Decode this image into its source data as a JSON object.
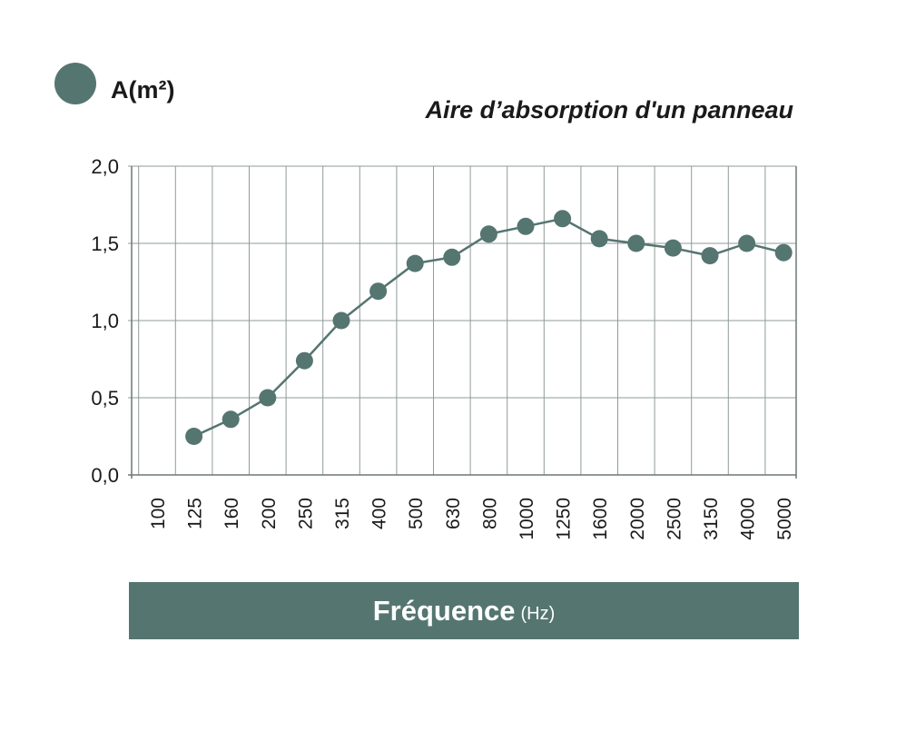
{
  "legend": {
    "label": "A(m²)",
    "color": "#557570"
  },
  "chart_data": {
    "type": "line",
    "title": "Aire d’absorption d'un panneau",
    "ylabel": "A(m²)",
    "xlabel_main": "Fréquence",
    "xlabel_unit": "(Hz)",
    "categories": [
      "100",
      "125",
      "160",
      "200",
      "250",
      "315",
      "400",
      "500",
      "630",
      "800",
      "1000",
      "1250",
      "1600",
      "2000",
      "2500",
      "3150",
      "4000",
      "5000"
    ],
    "series": [
      {
        "name": "A(m²)",
        "color": "#557570",
        "values": [
          null,
          0.25,
          0.36,
          0.5,
          0.74,
          1.0,
          1.19,
          1.37,
          1.41,
          1.56,
          1.61,
          1.66,
          1.53,
          1.5,
          1.47,
          1.42,
          1.5,
          1.44
        ]
      }
    ],
    "ylim": [
      0,
      2.0
    ],
    "yticks": [
      "0,0",
      "0,5",
      "1,0",
      "1,5",
      "2,0"
    ],
    "ytick_values": [
      0,
      0.5,
      1.0,
      1.5,
      2.0
    ],
    "grid": true,
    "legend_position": "top-left"
  }
}
